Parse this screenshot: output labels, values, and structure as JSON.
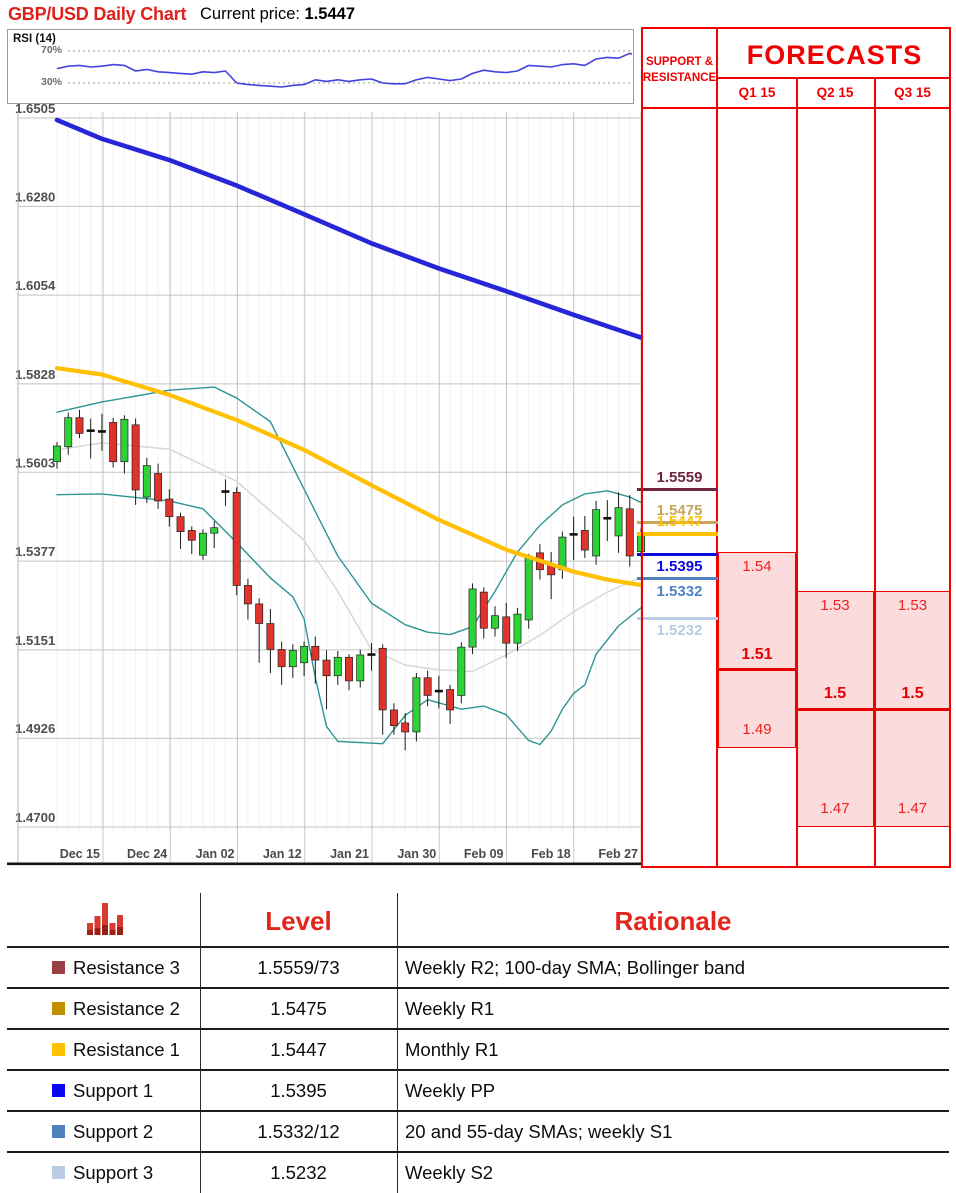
{
  "header": {
    "title": "GBP/USD Daily Chart",
    "current_price_label": "Current price:",
    "current_price": "1.5447"
  },
  "rsi_panel": {
    "label": "RSI (14)",
    "upper_label": "70%",
    "lower_label": "30%",
    "upper": 70,
    "lower": 30,
    "values": [
      48,
      51,
      52,
      50,
      51,
      53,
      52,
      45,
      47,
      44,
      43,
      42,
      41,
      44,
      43,
      45,
      30,
      28,
      27,
      26,
      25,
      27,
      28,
      34,
      32,
      34,
      32,
      34,
      35,
      30,
      29,
      29,
      34,
      37,
      35,
      33,
      35,
      42,
      46,
      44,
      43,
      45,
      52,
      51,
      50,
      53,
      54,
      52,
      60,
      62,
      61,
      67,
      63
    ]
  },
  "chart_data": {
    "type": "candlestick",
    "title": "GBP/USD Daily Chart",
    "x_labels": [
      "Dec 15",
      "Dec 24",
      "Jan 02",
      "Jan 12",
      "Jan 21",
      "Jan 30",
      "Feb 09",
      "Feb 18",
      "Feb 27"
    ],
    "y_ticks": [
      "1.6505",
      "1.6280",
      "1.6054",
      "1.5828",
      "1.5603",
      "1.5377",
      "1.5151",
      "1.4926",
      "1.4700"
    ],
    "y_range": [
      1.47,
      1.6505
    ],
    "grid": true,
    "candles_ohlc": [
      [
        1.563,
        1.568,
        1.5612,
        1.567
      ],
      [
        1.5668,
        1.5755,
        1.5648,
        1.5742
      ],
      [
        1.5742,
        1.5762,
        1.569,
        1.5702
      ],
      [
        1.5706,
        1.574,
        1.5638,
        1.5712
      ],
      [
        1.5712,
        1.5752,
        1.5658,
        1.5702
      ],
      [
        1.573,
        1.5742,
        1.5615,
        1.563
      ],
      [
        1.563,
        1.5748,
        1.56,
        1.5738
      ],
      [
        1.5724,
        1.574,
        1.552,
        1.5558
      ],
      [
        1.554,
        1.564,
        1.5525,
        1.562
      ],
      [
        1.56,
        1.5625,
        1.551,
        1.553
      ],
      [
        1.5535,
        1.556,
        1.5465,
        1.549
      ],
      [
        1.549,
        1.55,
        1.5408,
        1.5452
      ],
      [
        1.5455,
        1.5465,
        1.5395,
        1.543
      ],
      [
        1.5392,
        1.5458,
        1.538,
        1.5448
      ],
      [
        1.5448,
        1.5478,
        1.541,
        1.5462
      ],
      [
        1.555,
        1.5585,
        1.5518,
        1.5558
      ],
      [
        1.5552,
        1.5565,
        1.529,
        1.5315
      ],
      [
        1.5315,
        1.5332,
        1.5228,
        1.5268
      ],
      [
        1.5268,
        1.5282,
        1.5118,
        1.5218
      ],
      [
        1.5218,
        1.5255,
        1.5092,
        1.5152
      ],
      [
        1.5152,
        1.5172,
        1.5062,
        1.5108
      ],
      [
        1.5108,
        1.5165,
        1.508,
        1.515
      ],
      [
        1.5118,
        1.5172,
        1.5085,
        1.516
      ],
      [
        1.516,
        1.5185,
        1.5065,
        1.5125
      ],
      [
        1.5125,
        1.515,
        1.5,
        1.5085
      ],
      [
        1.5085,
        1.5148,
        1.5062,
        1.5132
      ],
      [
        1.5132,
        1.514,
        1.5048,
        1.5072
      ],
      [
        1.5072,
        1.5152,
        1.5055,
        1.5138
      ],
      [
        1.5142,
        1.5168,
        1.5098,
        1.5136
      ],
      [
        1.5155,
        1.5165,
        1.4935,
        1.4998
      ],
      [
        1.4998,
        1.5015,
        1.4935,
        1.4958
      ],
      [
        1.4965,
        1.499,
        1.4895,
        1.4942
      ],
      [
        1.4942,
        1.5092,
        1.4918,
        1.508
      ],
      [
        1.508,
        1.5098,
        1.5008,
        1.5035
      ],
      [
        1.5042,
        1.5085,
        1.5002,
        1.505
      ],
      [
        1.505,
        1.5062,
        1.4962,
        1.4998
      ],
      [
        1.5035,
        1.517,
        1.5015,
        1.5158
      ],
      [
        1.5158,
        1.532,
        1.514,
        1.5306
      ],
      [
        1.5298,
        1.531,
        1.518,
        1.5206
      ],
      [
        1.5206,
        1.5262,
        1.5185,
        1.5238
      ],
      [
        1.5235,
        1.527,
        1.513,
        1.5168
      ],
      [
        1.5168,
        1.5258,
        1.5148,
        1.5242
      ],
      [
        1.5227,
        1.5395,
        1.5205,
        1.5385
      ],
      [
        1.5398,
        1.542,
        1.533,
        1.5355
      ],
      [
        1.5368,
        1.54,
        1.528,
        1.5342
      ],
      [
        1.5355,
        1.5452,
        1.5332,
        1.5438
      ],
      [
        1.5448,
        1.549,
        1.538,
        1.5442
      ],
      [
        1.5455,
        1.5492,
        1.5385,
        1.5405
      ],
      [
        1.539,
        1.553,
        1.5368,
        1.5508
      ],
      [
        1.549,
        1.5532,
        1.5428,
        1.5482
      ],
      [
        1.5441,
        1.5552,
        1.5398,
        1.5513
      ],
      [
        1.551,
        1.5545,
        1.5363,
        1.539
      ],
      [
        1.5401,
        1.546,
        1.5388,
        1.5447
      ]
    ],
    "lines": {
      "sma_200_blue": [
        [
          0,
          1.65
        ],
        [
          4,
          1.6452
        ],
        [
          10,
          1.6398
        ],
        [
          16,
          1.6333
        ],
        [
          22,
          1.626
        ],
        [
          28,
          1.6186
        ],
        [
          34,
          1.6122
        ],
        [
          40,
          1.6064
        ],
        [
          46,
          1.6004
        ],
        [
          52,
          1.5946
        ]
      ],
      "sma_55_yellow": [
        [
          0,
          1.5868
        ],
        [
          4,
          1.5852
        ],
        [
          10,
          1.58
        ],
        [
          16,
          1.5736
        ],
        [
          22,
          1.566
        ],
        [
          28,
          1.557
        ],
        [
          34,
          1.5482
        ],
        [
          40,
          1.5406
        ],
        [
          46,
          1.535
        ],
        [
          49,
          1.533
        ],
        [
          52,
          1.5316
        ]
      ],
      "sma_20_gray": [
        [
          0,
          1.566
        ],
        [
          4,
          1.5678
        ],
        [
          10,
          1.5662
        ],
        [
          16,
          1.558
        ],
        [
          22,
          1.543
        ],
        [
          25,
          1.53
        ],
        [
          28,
          1.5152
        ],
        [
          31,
          1.5112
        ],
        [
          34,
          1.51
        ],
        [
          37,
          1.5096
        ],
        [
          40,
          1.5138
        ],
        [
          43,
          1.5188
        ],
        [
          46,
          1.5248
        ],
        [
          49,
          1.5298
        ],
        [
          52,
          1.5336
        ]
      ],
      "bollinger_upper": [
        [
          0,
          1.5756
        ],
        [
          4,
          1.5782
        ],
        [
          10,
          1.5812
        ],
        [
          14,
          1.582
        ],
        [
          16,
          1.5792
        ],
        [
          19,
          1.5732
        ],
        [
          22,
          1.556
        ],
        [
          25,
          1.539
        ],
        [
          28,
          1.527
        ],
        [
          31,
          1.5215
        ],
        [
          33,
          1.5196
        ],
        [
          35,
          1.519
        ],
        [
          37,
          1.521
        ],
        [
          39,
          1.53
        ],
        [
          41,
          1.54
        ],
        [
          43,
          1.5468
        ],
        [
          45,
          1.552
        ],
        [
          47,
          1.5548
        ],
        [
          49,
          1.5556
        ],
        [
          51,
          1.554
        ],
        [
          52,
          1.5526
        ]
      ],
      "bollinger_lower": [
        [
          0,
          1.5546
        ],
        [
          4,
          1.5548
        ],
        [
          10,
          1.553
        ],
        [
          13,
          1.551
        ],
        [
          16,
          1.5424
        ],
        [
          19,
          1.5334
        ],
        [
          21,
          1.5286
        ],
        [
          22,
          1.523
        ],
        [
          23,
          1.508
        ],
        [
          24,
          1.4956
        ],
        [
          25,
          1.4918
        ],
        [
          29,
          1.4912
        ],
        [
          31,
          1.4984
        ],
        [
          33,
          1.5024
        ],
        [
          36,
          1.5
        ],
        [
          38,
          1.5008
        ],
        [
          40,
          1.4986
        ],
        [
          42,
          1.492
        ],
        [
          43,
          1.491
        ],
        [
          44,
          1.4944
        ],
        [
          45,
          1.5
        ],
        [
          46,
          1.504
        ],
        [
          47,
          1.5062
        ],
        [
          48,
          1.514
        ],
        [
          50,
          1.5212
        ],
        [
          52,
          1.5258
        ]
      ]
    },
    "colors": {
      "candle_up": "#2bd334",
      "candle_down": "#df332c",
      "sma_200": "#2626d8",
      "sma_55": "#ffc000",
      "sma_20": "#d9d9d9",
      "bollinger": "#2d9494",
      "rsi": "#4343e0"
    }
  },
  "panel": {
    "sr_header_1": "SUPPORT &",
    "sr_header_2": "RESISTANCE",
    "forecasts_title": "FORECASTS",
    "sr_levels": [
      {
        "label": "1.5559",
        "price": 1.5559,
        "color": "#70243d",
        "thickness": 3,
        "label_pos": "above"
      },
      {
        "label": "1.5475",
        "price": 1.5475,
        "color": "#c9a55a",
        "thickness": 3,
        "label_pos": "above"
      },
      {
        "label": "1.5447",
        "price": 1.5447,
        "color": "#ffc000",
        "thickness": 4,
        "label_pos": "above"
      },
      {
        "label": "1.5395",
        "price": 1.5395,
        "color": "#0a0adf",
        "thickness": 3,
        "label_pos": "below"
      },
      {
        "label": "1.5332",
        "price": 1.5332,
        "color": "#4f81bd",
        "thickness": 3,
        "label_pos": "below"
      },
      {
        "label": "1.5232",
        "price": 1.5232,
        "color": "#b8cce4",
        "thickness": 3,
        "label_pos": "below"
      }
    ],
    "quarters": [
      {
        "label": "Q1 15",
        "high": 1.54,
        "mid": 1.51,
        "low": 1.49,
        "high_label": "1.54",
        "mid_label": "1.51",
        "low_label": "1.49"
      },
      {
        "label": "Q2 15",
        "high": 1.53,
        "mid": 1.5,
        "low": 1.47,
        "high_label": "1.53",
        "mid_label": "1.5",
        "low_label": "1.47"
      },
      {
        "label": "Q3 15",
        "high": 1.53,
        "mid": 1.5,
        "low": 1.47,
        "high_label": "1.53",
        "mid_label": "1.5",
        "low_label": "1.47"
      }
    ]
  },
  "table": {
    "icon": "bar-chart-icon",
    "headers": {
      "level": "Level",
      "rationale": "Rationale"
    },
    "rows": [
      {
        "name": "Resistance 3",
        "swatch": "#9a4045",
        "level": "1.5559/73",
        "rationale": "Weekly R2; 100-day SMA; Bollinger band"
      },
      {
        "name": "Resistance 2",
        "swatch": "#bf9000",
        "level": "1.5475",
        "rationale": "Weekly R1"
      },
      {
        "name": "Resistance 1",
        "swatch": "#ffc000",
        "level": "1.5447",
        "rationale": "Monthly R1"
      },
      {
        "name": "Support 1",
        "swatch": "#0808f0",
        "level": "1.5395",
        "rationale": "Weekly PP"
      },
      {
        "name": "Support 2",
        "swatch": "#4f81bd",
        "level": "1.5332/12",
        "rationale": "20 and 55-day SMAs; weekly S1"
      },
      {
        "name": "Support 3",
        "swatch": "#b8cce4",
        "level": "1.5232",
        "rationale": "Weekly S2"
      }
    ]
  }
}
